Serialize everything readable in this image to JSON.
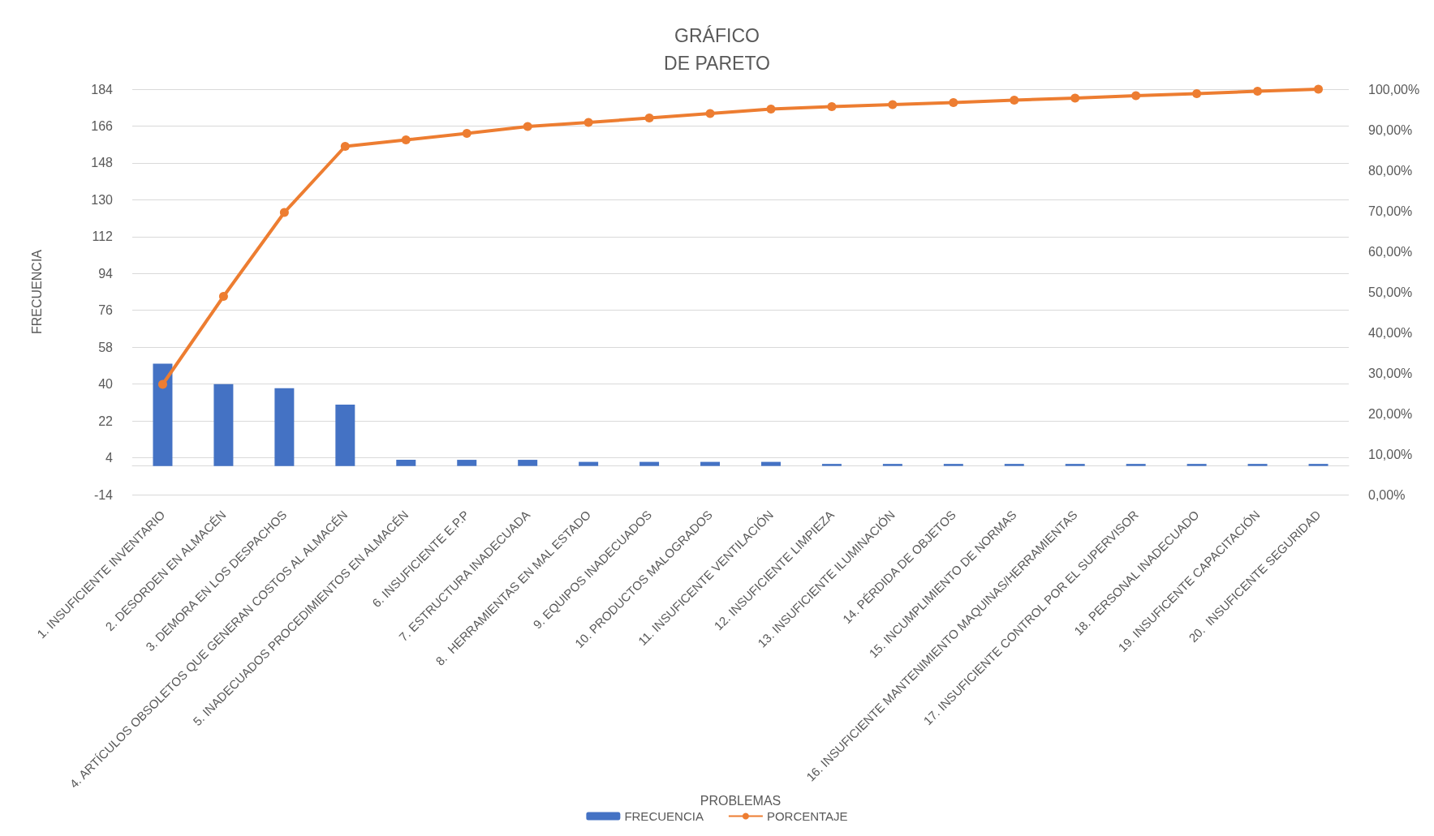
{
  "chart_data": {
    "type": "bar",
    "title": "GRÁFICO\nDE PARETO",
    "xlabel": "PROBLEMAS",
    "ylabel": "FRECUENCIA",
    "categories": [
      "1. INSUFICIENTE INVENTARIO",
      "2. DESORDEN EN ALMACÉN",
      "3. DEMORA EN LOS DESPACHOS",
      "4. ARTÍCULOS OBSOLETOS QUE GENERAN COSTOS AL ALMACÉN",
      "5. INADECUADOS PROCEDIMIENTOS EN ALMACÉN",
      "6. INSUFICIENTE E.P.P",
      "7. ESTRUCTURA INADECUADA",
      "8.  HERRAMIENTAS EN MAL ESTADO",
      "9. EQUIPOS INADECUADOS",
      "10. PRODUCTOS MALOGRADOS",
      "11. INSUFICENTE VENTILACIÓN",
      "12. INSUFICIENTE LIMPIEZA",
      "13. INSUFICIENTE ILUMINACIÓN",
      "14. PÉRDIDA DE OBJETOS",
      "15. INCUMPLIMIENTO DE NORMAS",
      "16. INSUFICIENTE MANTENIMIENTO MAQUINAS/HERRAMIENTAS",
      "17. INSUFICIENTE CONTROL POR EL SUPERVISOR",
      "18. PERSONAL INADECUADO",
      "19. INSUFICENTE CAPACITACIÓN",
      "20.  INSUFICENTE SEGURIDAD"
    ],
    "series": [
      {
        "name": "FRECUENCIA",
        "color": "#4472c4",
        "values": [
          50,
          40,
          38,
          30,
          3,
          3,
          3,
          2,
          2,
          2,
          2,
          1,
          1,
          1,
          1,
          1,
          1,
          1,
          1,
          1
        ]
      },
      {
        "name": "PORCENTAJE",
        "type": "line",
        "axis": "y2",
        "color": "#ed7d31",
        "marker": "circle",
        "values": [
          27.2,
          48.9,
          69.6,
          85.9,
          87.5,
          89.1,
          90.8,
          91.8,
          92.9,
          94.0,
          95.1,
          95.7,
          96.2,
          96.7,
          97.3,
          97.8,
          98.4,
          98.9,
          99.5,
          100
        ]
      }
    ],
    "ylim": [
      -14,
      184
    ],
    "yticks": [
      -14,
      4,
      22,
      40,
      58,
      76,
      94,
      112,
      130,
      148,
      166,
      184
    ],
    "y2lim": [
      0,
      100
    ],
    "y2ticks": [
      {
        "value": 0,
        "label": "0,00%"
      },
      {
        "value": 10,
        "label": "10,00%"
      },
      {
        "value": 20,
        "label": "20,00%"
      },
      {
        "value": 30,
        "label": "30,00%"
      },
      {
        "value": 40,
        "label": "40,00%"
      },
      {
        "value": 50,
        "label": "50,00%"
      },
      {
        "value": 60,
        "label": "60,00%"
      },
      {
        "value": 70,
        "label": "70,00%"
      },
      {
        "value": 80,
        "label": "80,00%"
      },
      {
        "value": 90,
        "label": "90,00%"
      },
      {
        "value": 100,
        "label": "100,00%"
      }
    ],
    "grid": "y",
    "legend": "bottom"
  }
}
